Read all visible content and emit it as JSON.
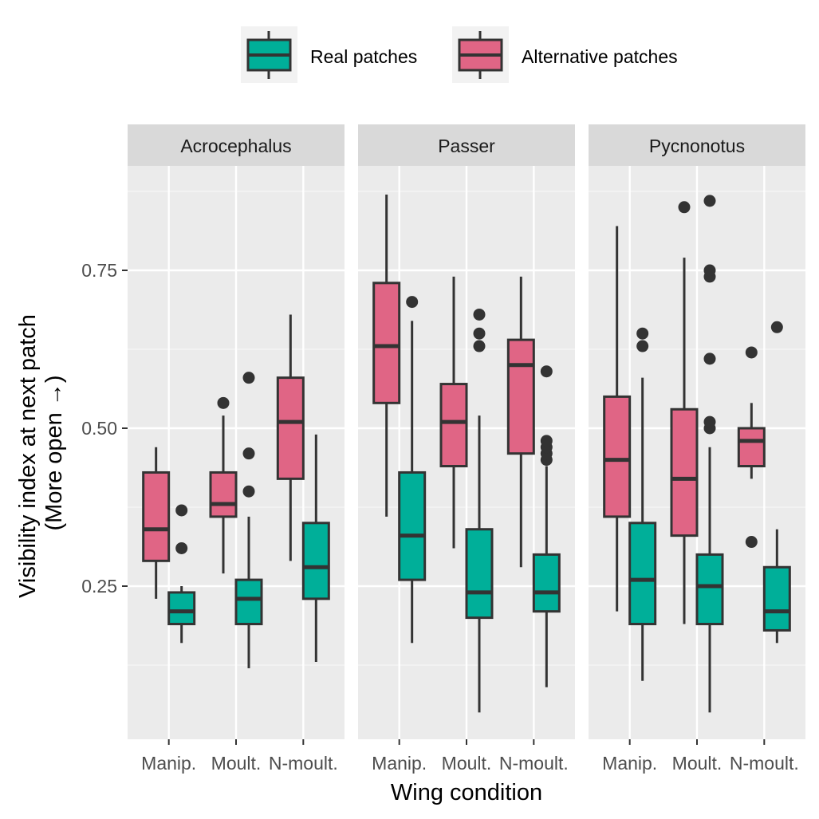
{
  "chart_data": {
    "type": "boxplot",
    "title": "",
    "xlabel": "Wing condition",
    "ylabel_line1": "Visibility index at next patch",
    "ylabel_line2": "(More open →)",
    "categories": [
      "Manip.",
      "Moult.",
      "N-moult."
    ],
    "yticks": [
      "0.25",
      "0.50",
      "0.75"
    ],
    "ylim": [
      0.03,
      0.92
    ],
    "grid": true,
    "legend_position": "top",
    "legend": [
      {
        "key": "real",
        "label": "Real patches",
        "color": "#00AF99"
      },
      {
        "key": "alt",
        "label": "Alternative patches",
        "color": "#E06585"
      }
    ],
    "panels": [
      {
        "name": "Acrocephalus",
        "groups": [
          {
            "category": "Manip.",
            "alt": {
              "min": 0.23,
              "q1": 0.29,
              "median": 0.34,
              "q3": 0.43,
              "max": 0.47,
              "outliers": []
            },
            "real": {
              "min": 0.16,
              "q1": 0.19,
              "median": 0.21,
              "q3": 0.24,
              "max": 0.25,
              "outliers": [
                0.31,
                0.37
              ]
            }
          },
          {
            "category": "Moult.",
            "alt": {
              "min": 0.27,
              "q1": 0.36,
              "median": 0.38,
              "q3": 0.43,
              "max": 0.52,
              "outliers": [
                0.54
              ]
            },
            "real": {
              "min": 0.12,
              "q1": 0.19,
              "median": 0.23,
              "q3": 0.26,
              "max": 0.36,
              "outliers": [
                0.4,
                0.46,
                0.58
              ]
            }
          },
          {
            "category": "N-moult.",
            "alt": {
              "min": 0.29,
              "q1": 0.42,
              "median": 0.51,
              "q3": 0.58,
              "max": 0.68,
              "outliers": []
            },
            "real": {
              "min": 0.13,
              "q1": 0.23,
              "median": 0.28,
              "q3": 0.35,
              "max": 0.49,
              "outliers": []
            }
          }
        ]
      },
      {
        "name": "Passer",
        "groups": [
          {
            "category": "Manip.",
            "alt": {
              "min": 0.36,
              "q1": 0.54,
              "median": 0.63,
              "q3": 0.73,
              "max": 0.87,
              "outliers": []
            },
            "real": {
              "min": 0.16,
              "q1": 0.26,
              "median": 0.33,
              "q3": 0.43,
              "max": 0.67,
              "outliers": [
                0.7
              ]
            }
          },
          {
            "category": "Moult.",
            "alt": {
              "min": 0.31,
              "q1": 0.44,
              "median": 0.51,
              "q3": 0.57,
              "max": 0.74,
              "outliers": []
            },
            "real": {
              "min": 0.05,
              "q1": 0.2,
              "median": 0.24,
              "q3": 0.34,
              "max": 0.52,
              "outliers": [
                0.63,
                0.65,
                0.68
              ]
            }
          },
          {
            "category": "N-moult.",
            "alt": {
              "min": 0.28,
              "q1": 0.46,
              "median": 0.6,
              "q3": 0.64,
              "max": 0.74,
              "outliers": []
            },
            "real": {
              "min": 0.09,
              "q1": 0.21,
              "median": 0.24,
              "q3": 0.3,
              "max": 0.44,
              "outliers": [
                0.45,
                0.46,
                0.47,
                0.48,
                0.59
              ]
            }
          }
        ]
      },
      {
        "name": "Pycnonotus",
        "groups": [
          {
            "category": "Manip.",
            "alt": {
              "min": 0.21,
              "q1": 0.36,
              "median": 0.45,
              "q3": 0.55,
              "max": 0.82,
              "outliers": []
            },
            "real": {
              "min": 0.1,
              "q1": 0.19,
              "median": 0.26,
              "q3": 0.35,
              "max": 0.58,
              "outliers": [
                0.63,
                0.65
              ]
            }
          },
          {
            "category": "Moult.",
            "alt": {
              "min": 0.19,
              "q1": 0.33,
              "median": 0.42,
              "q3": 0.53,
              "max": 0.77,
              "outliers": [
                0.85
              ]
            },
            "real": {
              "min": 0.05,
              "q1": 0.19,
              "median": 0.25,
              "q3": 0.3,
              "max": 0.47,
              "outliers": [
                0.5,
                0.51,
                0.61,
                0.74,
                0.75,
                0.86
              ]
            }
          },
          {
            "category": "N-moult.",
            "alt": {
              "min": 0.42,
              "q1": 0.44,
              "median": 0.48,
              "q3": 0.5,
              "max": 0.54,
              "outliers": [
                0.32,
                0.62
              ]
            },
            "real": {
              "min": 0.16,
              "q1": 0.18,
              "median": 0.21,
              "q3": 0.28,
              "max": 0.34,
              "outliers": [
                0.66
              ]
            }
          }
        ]
      }
    ]
  }
}
